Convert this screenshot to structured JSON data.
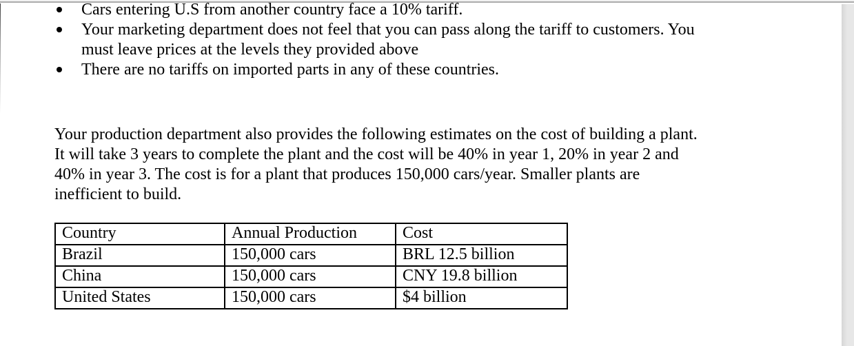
{
  "page": {
    "background": "#ffffff",
    "text_color": "#000000",
    "top_bar_color": "#f1f1f1",
    "top_bar_line_color": "#ababab",
    "scrollbar_track_color": "#e7e7e7",
    "scrollbar_edge_color": "#d6d6d6",
    "table_border_color": "#000000"
  },
  "document": {
    "bullets": [
      {
        "lines": [
          "Cars entering U.S from another country face a 10% tariff."
        ]
      },
      {
        "lines": [
          "Your marketing department does not feel that you can pass along the tariff to customers. You",
          "must leave prices at the levels they provided above"
        ]
      },
      {
        "lines": [
          "There are no tariffs on imported parts in any of these countries."
        ]
      }
    ],
    "paragraph_lines": [
      "Your production department also provides the following estimates on the cost of building a plant.",
      "It will take 3 years to complete the plant and the cost will be 40% in year 1, 20% in year 2 and",
      "40% in year 3. The cost is for a plant that produces 150,000 cars/year. Smaller plants are",
      "inefficient to build."
    ],
    "table": {
      "headers": [
        "Country",
        "Annual Production",
        "Cost"
      ],
      "rows": [
        [
          "Brazil",
          "150,000 cars",
          "BRL 12.5 billion"
        ],
        [
          "China",
          "150,000 cars",
          "CNY 19.8 billion"
        ],
        [
          "United States",
          "150,000 cars",
          "$4 billion"
        ]
      ]
    }
  }
}
